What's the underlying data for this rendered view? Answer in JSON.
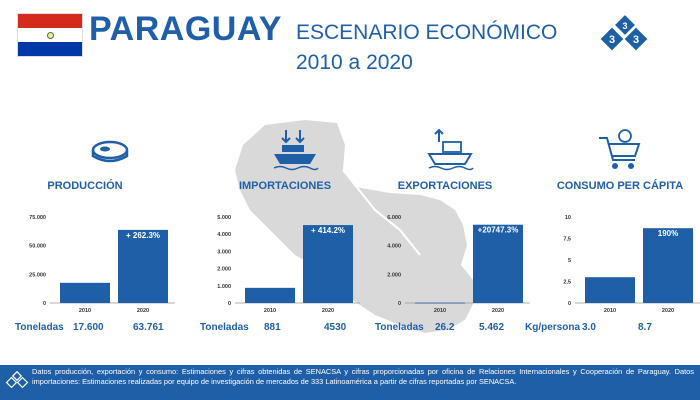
{
  "header": {
    "country": "PARAGUAY",
    "subtitle_line1": "ESCENARIO ECONÓMICO",
    "subtitle_line2": "2010 a 2020"
  },
  "colors": {
    "primary": "#1f5fa8",
    "map": "#d9d9d9",
    "flag_red": "#d52b1e",
    "flag_white": "#ffffff",
    "flag_blue": "#0038a8"
  },
  "logo_text": "333",
  "chart_data": [
    {
      "type": "bar",
      "title": "PRODUCCIÓN",
      "icon": "meat-icon",
      "categories": [
        "2010",
        "2020"
      ],
      "values": [
        17600,
        63761
      ],
      "value_labels": [
        "17.600",
        "63.761"
      ],
      "annotation": "+ 262.3%",
      "unit_label": "Toneladas",
      "yticks": [
        "0",
        "25.000",
        "50.000",
        "75.000"
      ],
      "ylim": [
        0,
        75000
      ]
    },
    {
      "type": "bar",
      "title": "IMPORTACIONES",
      "icon": "import-ship-icon",
      "categories": [
        "2010",
        "2020"
      ],
      "values": [
        881,
        4530
      ],
      "value_labels": [
        "881",
        "4530"
      ],
      "annotation": "+ 414.2%",
      "unit_label": "Toneladas",
      "yticks": [
        "0",
        "1.000",
        "2.000",
        "3.000",
        "4.000",
        "5.000"
      ],
      "ylim": [
        0,
        5000
      ]
    },
    {
      "type": "bar",
      "title": "EXPORTACIONES",
      "icon": "export-ship-icon",
      "categories": [
        "2010",
        "2020"
      ],
      "values": [
        26.2,
        5462
      ],
      "value_labels": [
        "26.2",
        "5.462"
      ],
      "annotation": "+20747.3%",
      "unit_label": "Toneladas",
      "yticks": [
        "0",
        "2.000",
        "4.000",
        "6.000"
      ],
      "ylim": [
        0,
        6000
      ]
    },
    {
      "type": "bar",
      "title": "CONSUMO PER CÁPITA",
      "icon": "shopping-cart-icon",
      "categories": [
        "2010",
        "2020"
      ],
      "values": [
        3.0,
        8.7
      ],
      "value_labels": [
        "3.0",
        "8.7"
      ],
      "annotation": "190%",
      "unit_label": "Kg/persona",
      "yticks": [
        "0",
        "2,5",
        "5",
        "7,5",
        "10"
      ],
      "ylim": [
        0,
        10
      ]
    }
  ],
  "footer": {
    "text": "Datos producción, exportación y consumo: Estimaciones y cifras obtenidas de SENACSA y cifras proporcionadas por oficina de Relaciones Internacionales y Cooperación de Paraguay. Datos importaciones: Estimaciones realizadas por equipo de investigación de mercados de 333 Latinoamérica a partir de cifras reportadas por SENACSA."
  }
}
